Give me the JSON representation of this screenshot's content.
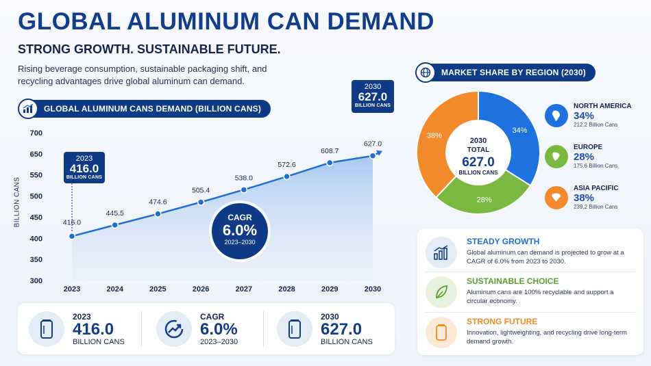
{
  "header": {
    "title": "GLOBAL ALUMINUM CAN DEMAND",
    "subtitle": "STRONG GROWTH. SUSTAINABLE FUTURE.",
    "intro": "Rising beverage consumption, sustainable packaging shift, and recycling advantages drive global aluminum can demand."
  },
  "chart_data": [
    {
      "type": "area",
      "title": "GLOBAL ALUMINUM CANS DEMAND (BILLION CANS)",
      "xlabel": "",
      "ylabel": "BILLION CANS",
      "categories": [
        "2023",
        "2024",
        "2025",
        "2026",
        "2027",
        "2028",
        "2029",
        "2030"
      ],
      "values": [
        416.0,
        445.5,
        474.6,
        505.4,
        538.0,
        572.6,
        608.7,
        627.0
      ],
      "value_labels": [
        "416.0",
        "445.5",
        "474.6",
        "505.4",
        "538.0",
        "572.6",
        "608.7",
        "627.0"
      ],
      "y_ticks": [
        "700",
        "650",
        "550",
        "500",
        "450",
        "400",
        "350",
        "300"
      ],
      "ylim": [
        300,
        700
      ],
      "grid": false,
      "color": "#1f6fd6",
      "callouts": {
        "start": {
          "year": "2023",
          "value": "416.0",
          "unit": "BILLION CANS"
        },
        "end": {
          "year": "2030",
          "value": "627.0",
          "unit": "BILLION CANS"
        }
      },
      "cagr": {
        "label": "CAGR",
        "value": "6.0%",
        "range": "2023–2030"
      }
    },
    {
      "type": "pie",
      "title": "MARKET SHARE BY REGION (2030)",
      "center": {
        "year": "2030",
        "label": "TOTAL",
        "value": "627.0",
        "unit": "BILLION CANS"
      },
      "slices": [
        {
          "name": "NORTH AMERICA",
          "value": 34,
          "label": "34%",
          "sub": "212.2 Billion Cans",
          "color": "#1f73e0"
        },
        {
          "name": "EUROPE",
          "value": 28,
          "label": "28%",
          "sub": "175.6 Billion Cans",
          "color": "#7ab840"
        },
        {
          "name": "ASIA PACIFIC",
          "value": 38,
          "label": "38%",
          "sub": "239.2 Billion Cans",
          "color": "#f2892a"
        }
      ]
    }
  ],
  "stats": [
    {
      "label": "2023",
      "value": "416.0",
      "unit": "BILLION CANS",
      "icon": "can-icon"
    },
    {
      "label": "CAGR",
      "value": "6.0%",
      "unit": "2023–2030",
      "icon": "growth-arrow-icon"
    },
    {
      "label": "2030",
      "value": "627.0",
      "unit": "BILLION CANS",
      "icon": "can-icon"
    }
  ],
  "features": [
    {
      "title": "STEADY GROWTH",
      "text": "Global aluminum can demand is projected to grow at a CAGR of 6.0% from 2023 to 2030.",
      "color": "#1f6fd6",
      "icon": "bar-growth-icon"
    },
    {
      "title": "SUSTAINABLE CHOICE",
      "text": "Aluminum cans are 100% recyclable and support a circular economy.",
      "color": "#5a9e2f",
      "icon": "leaf-icon"
    },
    {
      "title": "STRONG FUTURE",
      "text": "Innovation, lightweighting, and recycling drive long-term demand growth.",
      "color": "#f08a24",
      "icon": "can-icon"
    }
  ]
}
